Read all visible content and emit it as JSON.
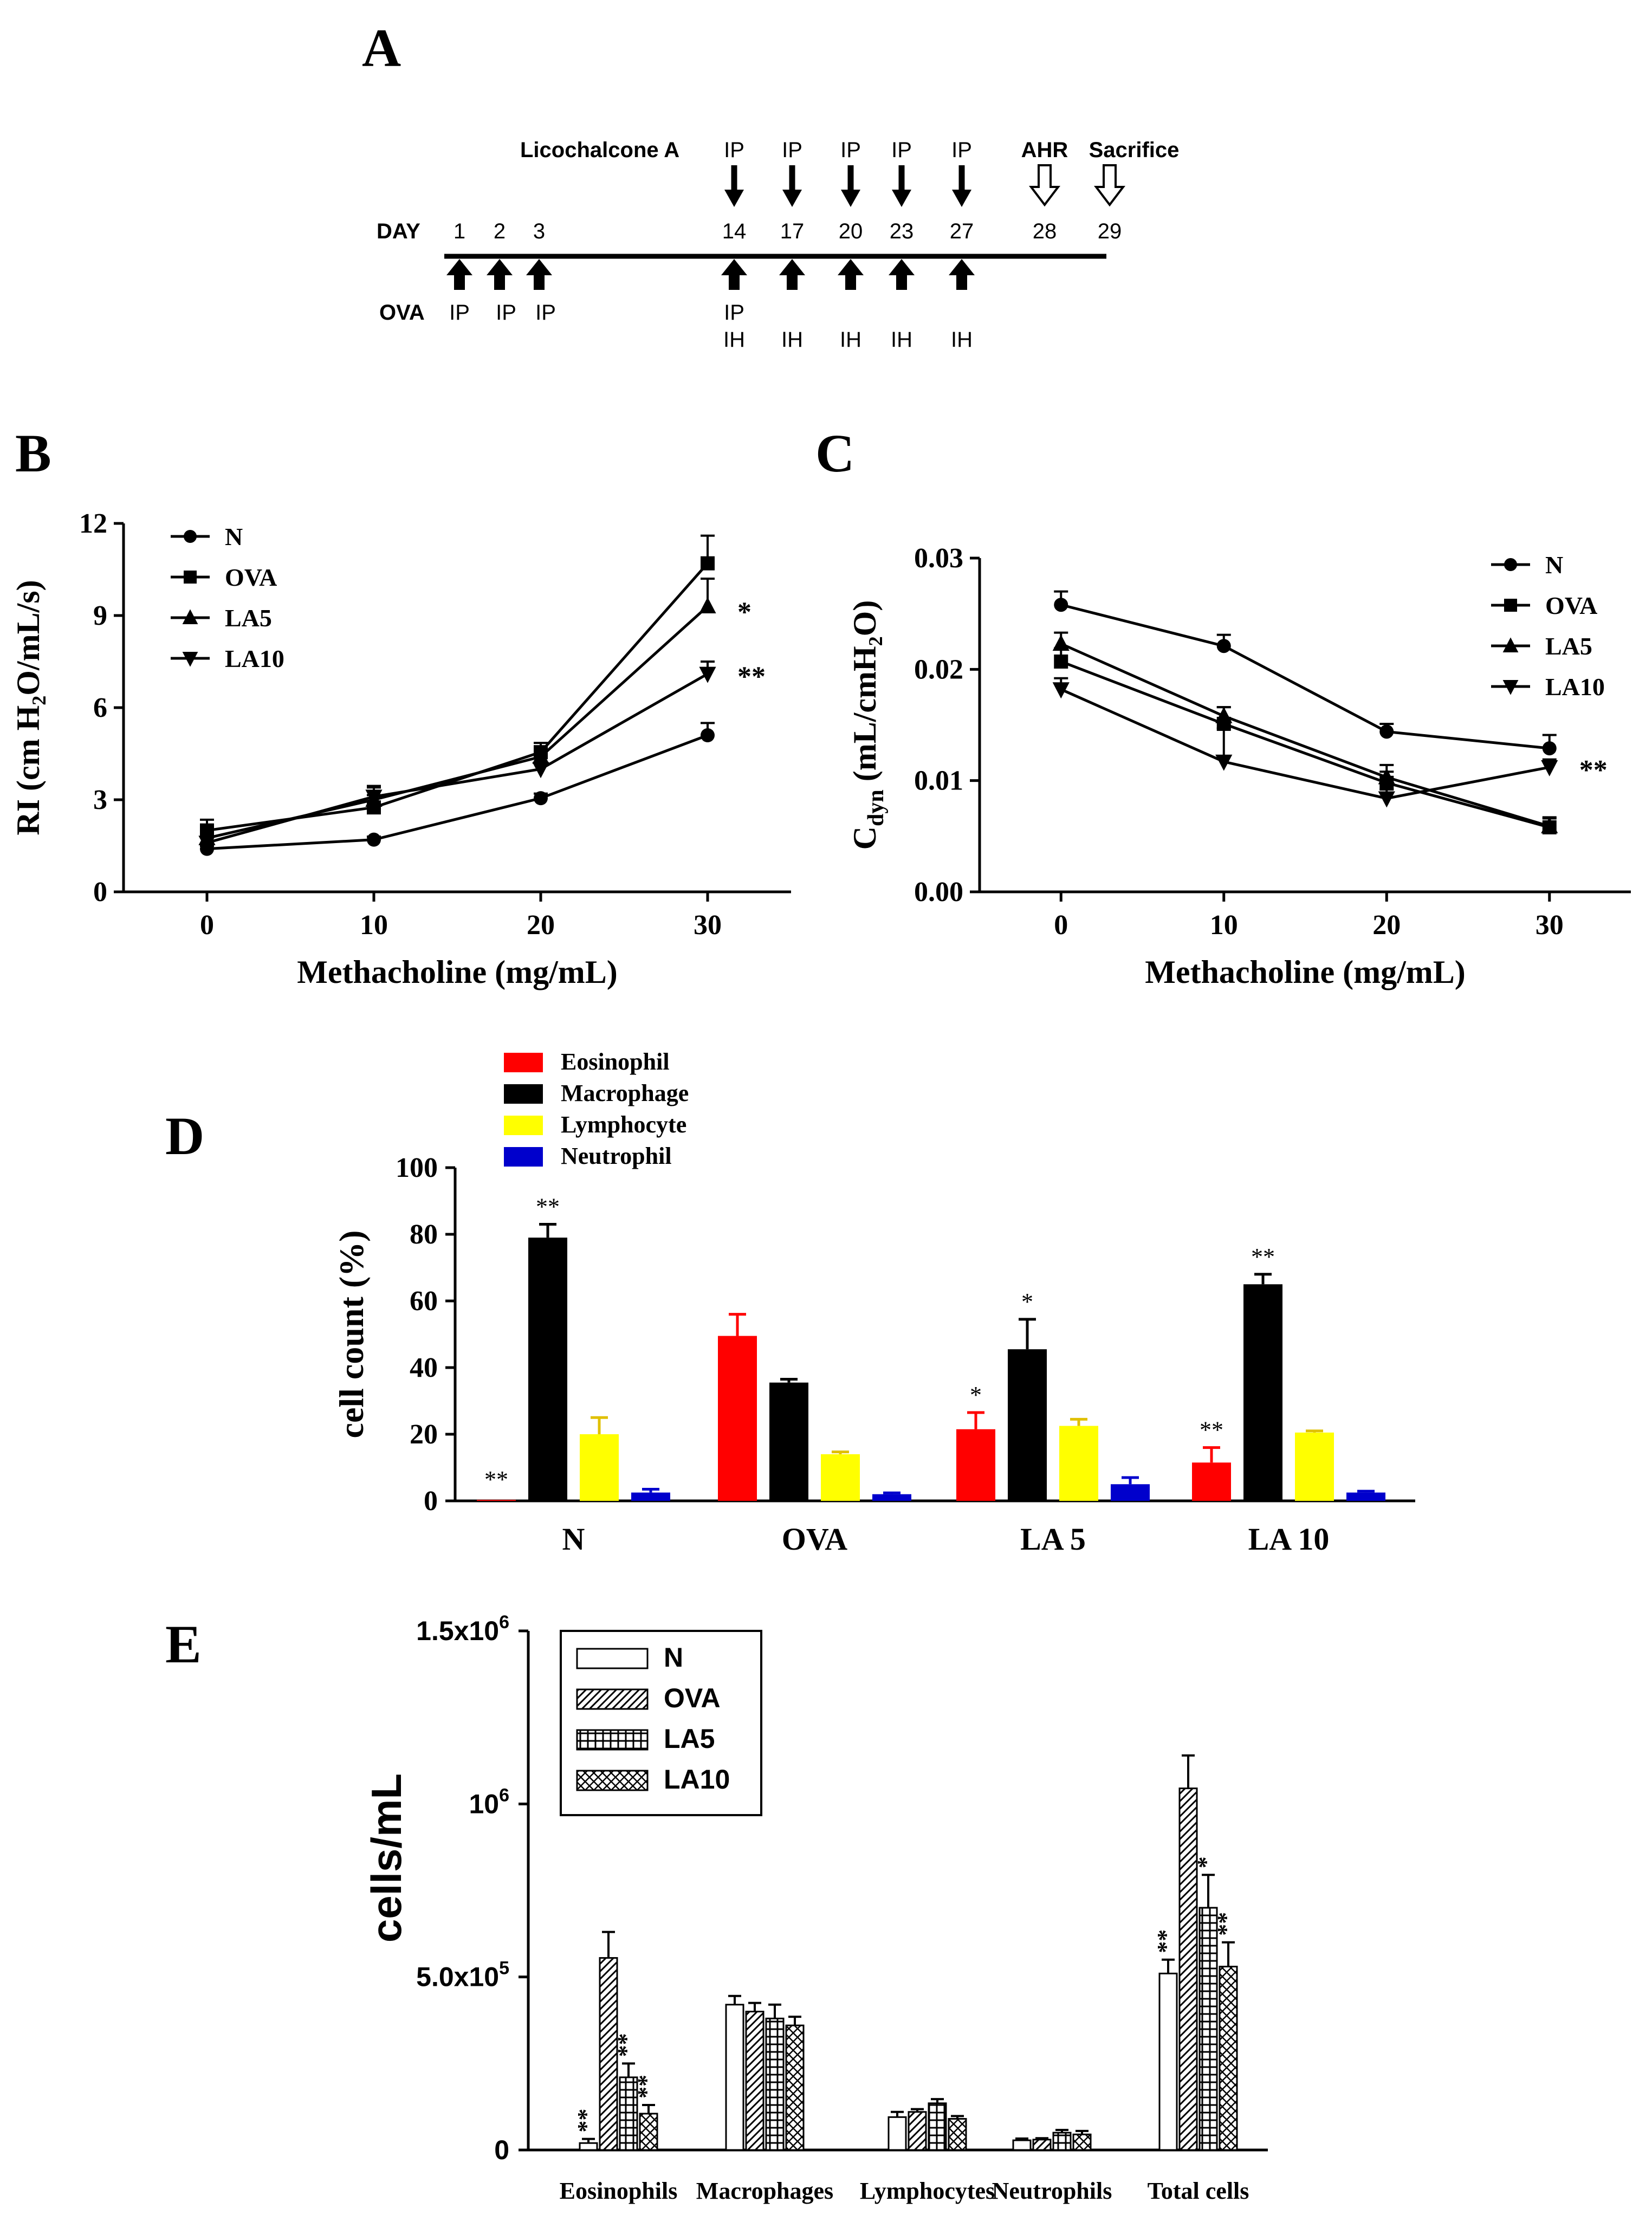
{
  "panel_letters": {
    "a": "A",
    "b": "B",
    "c": "C",
    "d": "D",
    "e": "E"
  },
  "timeline": {
    "drug_label": "Licochalcone A",
    "day_label": "DAY",
    "ova_label": "OVA",
    "days": [
      {
        "day": "1",
        "ova": "IP"
      },
      {
        "day": "2",
        "ova": "IP"
      },
      {
        "day": "3",
        "ova": "IP"
      },
      {
        "day": "14",
        "top": "IP",
        "ova": "IP",
        "ova2": "IH"
      },
      {
        "day": "17",
        "top": "IP",
        "ova": "IH"
      },
      {
        "day": "20",
        "top": "IP",
        "ova": "IH"
      },
      {
        "day": "23",
        "top": "IP",
        "ova": "IH"
      },
      {
        "day": "27",
        "top": "IP",
        "ova": "IH"
      },
      {
        "day": "28",
        "event": "AHR"
      },
      {
        "day": "29",
        "event": "Sacrifice"
      }
    ]
  },
  "colors": {
    "eosinophil": "#ff0000",
    "macrophage": "#000000",
    "lymphocyte": "#ffff00",
    "neutrophil": "#0000cc"
  },
  "chart_data": [
    {
      "id": "B",
      "type": "line",
      "xlabel": "Methacholine (mg/mL)",
      "ylabel": "RI (cm H₂O/mL/s)",
      "x": [
        0,
        10,
        20,
        30
      ],
      "xlim": [
        -5,
        35
      ],
      "ylim": [
        0,
        12
      ],
      "xticks": [
        "0",
        "10",
        "20",
        "30"
      ],
      "yticks": [
        "0",
        "3",
        "6",
        "9",
        "12"
      ],
      "legend_position": "top-left",
      "series": [
        {
          "name": "N",
          "marker": "circle",
          "values": [
            1.4,
            1.7,
            3.05,
            5.1
          ],
          "err": [
            0.1,
            0.1,
            0.15,
            0.4
          ]
        },
        {
          "name": "OVA",
          "marker": "square",
          "values": [
            2.0,
            2.75,
            4.55,
            10.7
          ],
          "err": [
            0.35,
            0.4,
            0.3,
            0.9
          ]
        },
        {
          "name": "LA5",
          "marker": "triangle-up",
          "values": [
            1.75,
            3.0,
            4.4,
            9.3
          ],
          "err": [
            0.3,
            0.4,
            0.3,
            0.9
          ]
        },
        {
          "name": "LA10",
          "marker": "triangle-down",
          "values": [
            1.6,
            3.1,
            4.0,
            7.1
          ],
          "err": [
            0.3,
            0.35,
            0.7,
            0.4
          ]
        }
      ],
      "annotations": [
        {
          "x": 30,
          "y": 9.2,
          "text": "*"
        },
        {
          "x": 30,
          "y": 7.1,
          "text": "**"
        }
      ]
    },
    {
      "id": "C",
      "type": "line",
      "xlabel": "Methacholine (mg/mL)",
      "ylabel": "Cdyn (mL/cmH₂O)",
      "x": [
        0,
        10,
        20,
        30
      ],
      "xlim": [
        -5,
        35
      ],
      "ylim": [
        0,
        0.03
      ],
      "xticks": [
        "0",
        "10",
        "20",
        "30"
      ],
      "yticks": [
        "0.00",
        "0.01",
        "0.02",
        "0.03"
      ],
      "legend_position": "top-right",
      "series": [
        {
          "name": "N",
          "marker": "circle",
          "values": [
            0.0258,
            0.0221,
            0.0144,
            0.0129
          ],
          "err": [
            0.0012,
            0.001,
            0.0007,
            0.0012
          ]
        },
        {
          "name": "OVA",
          "marker": "square",
          "values": [
            0.0207,
            0.0151,
            0.0098,
            0.0058
          ],
          "err": [
            0.0012,
            0.0015,
            0.001,
            0.0008
          ]
        },
        {
          "name": "LA5",
          "marker": "triangle-up",
          "values": [
            0.0223,
            0.0158,
            0.0103,
            0.0059
          ],
          "err": [
            0.001,
            0.0008,
            0.0011,
            0.0008
          ]
        },
        {
          "name": "LA10",
          "marker": "triangle-down",
          "values": [
            0.0182,
            0.0117,
            0.0084,
            0.0112
          ],
          "err": [
            0.001,
            0.003,
            0.0008,
            0.0007
          ]
        }
      ],
      "annotations": [
        {
          "x": 30,
          "y": 0.0112,
          "text": "**"
        }
      ]
    },
    {
      "id": "D",
      "type": "bar",
      "ylabel": "cell count (%)",
      "ylim": [
        0,
        100
      ],
      "yticks": [
        "0",
        "20",
        "40",
        "60",
        "80",
        "100"
      ],
      "categories": [
        "N",
        "OVA",
        "LA 5",
        "LA 10"
      ],
      "legend_position": "top",
      "series": [
        {
          "name": "Eosinophil",
          "color": "#ff0000",
          "values": [
            0.3,
            49.5,
            21.5,
            11.5
          ],
          "err": [
            0,
            6.5,
            5,
            4.5
          ],
          "stars": [
            "**",
            "",
            "*",
            "**"
          ]
        },
        {
          "name": "Macrophage",
          "color": "#000000",
          "values": [
            79,
            35.5,
            45.5,
            65
          ],
          "err": [
            4,
            1,
            9,
            3
          ],
          "stars": [
            "**",
            "",
            "*",
            "**"
          ]
        },
        {
          "name": "Lymphocyte",
          "color": "#ffff00",
          "values": [
            20,
            14,
            22.5,
            20.5
          ],
          "err": [
            5,
            0.7,
            2,
            0.5
          ],
          "stars": [
            "",
            "",
            "",
            ""
          ]
        },
        {
          "name": "Neutrophil",
          "color": "#0000cc",
          "values": [
            2.5,
            2,
            5,
            2.5
          ],
          "err": [
            1,
            0.4,
            2,
            0.4
          ],
          "stars": [
            "",
            "",
            "",
            ""
          ]
        }
      ]
    },
    {
      "id": "E",
      "type": "bar",
      "ylabel": "cells/mL",
      "ylim": [
        0,
        1500000
      ],
      "yticks": [
        {
          "value": 0,
          "base": "0",
          "exp": ""
        },
        {
          "value": 500000,
          "base": "5.0x10",
          "exp": "5"
        },
        {
          "value": 1000000,
          "base": "10",
          "exp": "6"
        },
        {
          "value": 1500000,
          "base": "1.5x10",
          "exp": "6"
        }
      ],
      "categories": [
        "Eosinophils",
        "Macrophages",
        "Lymphocytes",
        "Neutrophils",
        "Total cells"
      ],
      "legend_position": "top-left",
      "series": [
        {
          "name": "N",
          "pattern": "none",
          "values": [
            20000,
            420000,
            95000,
            28000,
            510000
          ],
          "err": [
            12000,
            25000,
            15000,
            5000,
            40000
          ],
          "stars": [
            "**",
            "",
            "",
            "",
            "**"
          ]
        },
        {
          "name": "OVA",
          "pattern": "diagonal",
          "values": [
            555000,
            400000,
            110000,
            30000,
            1045000
          ],
          "err": [
            75000,
            25000,
            8000,
            4000,
            95000
          ],
          "stars": [
            "",
            "",
            "",
            "",
            ""
          ]
        },
        {
          "name": "LA5",
          "pattern": "grid",
          "values": [
            210000,
            380000,
            135000,
            50000,
            700000
          ],
          "err": [
            40000,
            40000,
            12000,
            8000,
            95000
          ],
          "stars": [
            "**",
            "",
            "",
            "",
            "*"
          ]
        },
        {
          "name": "LA10",
          "pattern": "crosshatch",
          "values": [
            105000,
            360000,
            90000,
            45000,
            530000
          ],
          "err": [
            25000,
            25000,
            8000,
            10000,
            70000
          ],
          "stars": [
            "**",
            "",
            "",
            "",
            "**"
          ]
        }
      ]
    }
  ]
}
